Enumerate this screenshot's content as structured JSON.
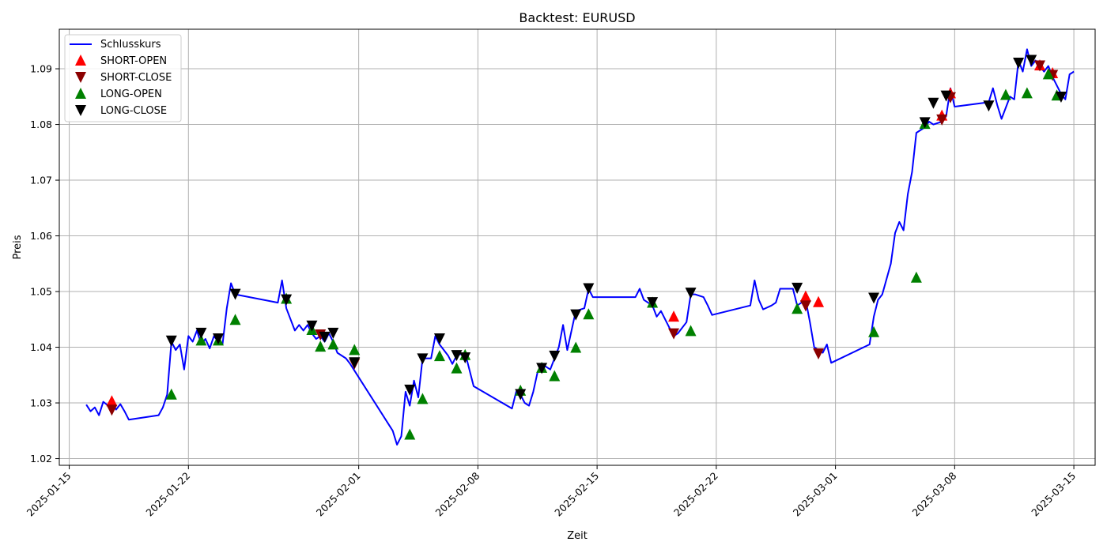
{
  "chart_data": {
    "type": "line",
    "title": "Backtest: EURUSD",
    "xlabel": "Zeit",
    "ylabel": "Preis",
    "grid": true,
    "legend_position": "top-left",
    "xlim": [
      "2025-01-14T10:00",
      "2025-03-16T06:00"
    ],
    "ylim": [
      1.0188,
      1.0971
    ],
    "x_ticks": [
      "2025-01-15",
      "2025-01-22",
      "2025-02-01",
      "2025-02-08",
      "2025-02-15",
      "2025-02-22",
      "2025-03-01",
      "2025-03-08",
      "2025-03-15"
    ],
    "y_ticks": [
      "1.02",
      "1.03",
      "1.04",
      "1.05",
      "1.06",
      "1.07",
      "1.08",
      "1.09"
    ],
    "colors": {
      "line": "#0000ff",
      "short_open": "#ff0000",
      "short_close": "#8b0000",
      "long_open": "#008000",
      "long_close": "#000000"
    },
    "series": [
      {
        "name": "Schlusskurs",
        "kind": "line",
        "points": [
          [
            "2025-01-16T00:00",
            1.0297
          ],
          [
            "2025-01-16T06:00",
            1.0285
          ],
          [
            "2025-01-16T12:00",
            1.0292
          ],
          [
            "2025-01-16T18:00",
            1.0278
          ],
          [
            "2025-01-17T00:00",
            1.0302
          ],
          [
            "2025-01-17T06:00",
            1.0296
          ],
          [
            "2025-01-17T12:00",
            1.0303
          ],
          [
            "2025-01-17T18:00",
            1.0288
          ],
          [
            "2025-01-18T00:00",
            1.0298
          ],
          [
            "2025-01-18T06:00",
            1.0285
          ],
          [
            "2025-01-18T12:00",
            1.027
          ],
          [
            "2025-01-20T06:00",
            1.0278
          ],
          [
            "2025-01-20T12:00",
            1.0292
          ],
          [
            "2025-01-20T18:00",
            1.0315
          ],
          [
            "2025-01-21T00:00",
            1.041
          ],
          [
            "2025-01-21T06:00",
            1.0395
          ],
          [
            "2025-01-21T12:00",
            1.0405
          ],
          [
            "2025-01-21T18:00",
            1.036
          ],
          [
            "2025-01-22T00:00",
            1.042
          ],
          [
            "2025-01-22T06:00",
            1.041
          ],
          [
            "2025-01-22T12:00",
            1.043
          ],
          [
            "2025-01-22T18:00",
            1.0405
          ],
          [
            "2025-01-23T00:00",
            1.0415
          ],
          [
            "2025-01-23T06:00",
            1.0398
          ],
          [
            "2025-01-23T12:00",
            1.042
          ],
          [
            "2025-01-23T18:00",
            1.041
          ],
          [
            "2025-01-24T00:00",
            1.0405
          ],
          [
            "2025-01-24T06:00",
            1.047
          ],
          [
            "2025-01-24T12:00",
            1.0515
          ],
          [
            "2025-01-24T18:00",
            1.0495
          ],
          [
            "2025-01-27T06:00",
            1.048
          ],
          [
            "2025-01-27T12:00",
            1.052
          ],
          [
            "2025-01-27T18:00",
            1.047
          ],
          [
            "2025-01-28T00:00",
            1.045
          ],
          [
            "2025-01-28T06:00",
            1.043
          ],
          [
            "2025-01-28T12:00",
            1.044
          ],
          [
            "2025-01-28T18:00",
            1.043
          ],
          [
            "2025-01-29T00:00",
            1.044
          ],
          [
            "2025-01-29T06:00",
            1.0425
          ],
          [
            "2025-01-29T12:00",
            1.0415
          ],
          [
            "2025-01-29T18:00",
            1.042
          ],
          [
            "2025-01-30T00:00",
            1.041
          ],
          [
            "2025-01-30T06:00",
            1.0425
          ],
          [
            "2025-01-30T12:00",
            1.041
          ],
          [
            "2025-01-30T18:00",
            1.039
          ],
          [
            "2025-01-31T06:00",
            1.038
          ],
          [
            "2025-01-31T12:00",
            1.037
          ],
          [
            "2025-02-03T00:00",
            1.025
          ],
          [
            "2025-02-03T06:00",
            1.0225
          ],
          [
            "2025-02-03T12:00",
            1.024
          ],
          [
            "2025-02-03T18:00",
            1.032
          ],
          [
            "2025-02-04T00:00",
            1.0295
          ],
          [
            "2025-02-04T06:00",
            1.034
          ],
          [
            "2025-02-04T12:00",
            1.031
          ],
          [
            "2025-02-04T18:00",
            1.038
          ],
          [
            "2025-02-05T06:00",
            1.038
          ],
          [
            "2025-02-05T12:00",
            1.042
          ],
          [
            "2025-02-05T18:00",
            1.0405
          ],
          [
            "2025-02-06T06:00",
            1.0385
          ],
          [
            "2025-02-06T12:00",
            1.037
          ],
          [
            "2025-02-06T18:00",
            1.0385
          ],
          [
            "2025-02-07T06:00",
            1.039
          ],
          [
            "2025-02-07T12:00",
            1.036
          ],
          [
            "2025-02-07T18:00",
            1.033
          ],
          [
            "2025-02-10T00:00",
            1.029
          ],
          [
            "2025-02-10T06:00",
            1.032
          ],
          [
            "2025-02-10T12:00",
            1.0315
          ],
          [
            "2025-02-10T18:00",
            1.03
          ],
          [
            "2025-02-11T00:00",
            1.0295
          ],
          [
            "2025-02-11T06:00",
            1.032
          ],
          [
            "2025-02-11T12:00",
            1.0355
          ],
          [
            "2025-02-11T18:00",
            1.037
          ],
          [
            "2025-02-12T06:00",
            1.036
          ],
          [
            "2025-02-12T12:00",
            1.038
          ],
          [
            "2025-02-12T18:00",
            1.04
          ],
          [
            "2025-02-13T00:00",
            1.044
          ],
          [
            "2025-02-13T06:00",
            1.0395
          ],
          [
            "2025-02-13T12:00",
            1.043
          ],
          [
            "2025-02-13T18:00",
            1.0465
          ],
          [
            "2025-02-14T06:00",
            1.047
          ],
          [
            "2025-02-14T12:00",
            1.0505
          ],
          [
            "2025-02-14T18:00",
            1.049
          ],
          [
            "2025-02-17T06:00",
            1.049
          ],
          [
            "2025-02-17T12:00",
            1.0505
          ],
          [
            "2025-02-17T18:00",
            1.0485
          ],
          [
            "2025-02-18T06:00",
            1.0475
          ],
          [
            "2025-02-18T12:00",
            1.0455
          ],
          [
            "2025-02-18T18:00",
            1.0465
          ],
          [
            "2025-02-19T06:00",
            1.0435
          ],
          [
            "2025-02-19T12:00",
            1.042
          ],
          [
            "2025-02-19T18:00",
            1.0425
          ],
          [
            "2025-02-20T06:00",
            1.0445
          ],
          [
            "2025-02-20T12:00",
            1.0495
          ],
          [
            "2025-02-20T18:00",
            1.0495
          ],
          [
            "2025-02-21T06:00",
            1.049
          ],
          [
            "2025-02-21T12:00",
            1.0475
          ],
          [
            "2025-02-21T18:00",
            1.0458
          ],
          [
            "2025-02-24T00:00",
            1.0475
          ],
          [
            "2025-02-24T06:00",
            1.052
          ],
          [
            "2025-02-24T12:00",
            1.0485
          ],
          [
            "2025-02-24T18:00",
            1.0468
          ],
          [
            "2025-02-25T06:00",
            1.0475
          ],
          [
            "2025-02-25T12:00",
            1.048
          ],
          [
            "2025-02-25T18:00",
            1.0505
          ],
          [
            "2025-02-26T06:00",
            1.0505
          ],
          [
            "2025-02-26T12:00",
            1.0505
          ],
          [
            "2025-02-26T18:00",
            1.0475
          ],
          [
            "2025-02-27T06:00",
            1.0485
          ],
          [
            "2025-02-27T12:00",
            1.0445
          ],
          [
            "2025-02-27T18:00",
            1.04
          ],
          [
            "2025-02-28T06:00",
            1.039
          ],
          [
            "2025-02-28T12:00",
            1.0405
          ],
          [
            "2025-02-28T18:00",
            1.0372
          ],
          [
            "2025-03-03T00:00",
            1.0405
          ],
          [
            "2025-03-03T06:00",
            1.0455
          ],
          [
            "2025-03-03T12:00",
            1.0485
          ],
          [
            "2025-03-03T18:00",
            1.0495
          ],
          [
            "2025-03-04T06:00",
            1.055
          ],
          [
            "2025-03-04T12:00",
            1.0605
          ],
          [
            "2025-03-04T18:00",
            1.0625
          ],
          [
            "2025-03-05T00:00",
            1.061
          ],
          [
            "2025-03-05T06:00",
            1.0675
          ],
          [
            "2025-03-05T12:00",
            1.0715
          ],
          [
            "2025-03-05T18:00",
            1.0785
          ],
          [
            "2025-03-06T06:00",
            1.0795
          ],
          [
            "2025-03-06T12:00",
            1.0805
          ],
          [
            "2025-03-06T18:00",
            1.08
          ],
          [
            "2025-03-07T06:00",
            1.0805
          ],
          [
            "2025-03-07T12:00",
            1.0815
          ],
          [
            "2025-03-07T18:00",
            1.0865
          ],
          [
            "2025-03-08T00:00",
            1.0832
          ],
          [
            "2025-03-10T00:00",
            1.084
          ],
          [
            "2025-03-10T06:00",
            1.0865
          ],
          [
            "2025-03-10T12:00",
            1.0835
          ],
          [
            "2025-03-10T18:00",
            1.081
          ],
          [
            "2025-03-11T06:00",
            1.085
          ],
          [
            "2025-03-11T12:00",
            1.0845
          ],
          [
            "2025-03-11T18:00",
            1.0915
          ],
          [
            "2025-03-12T00:00",
            1.0895
          ],
          [
            "2025-03-12T06:00",
            1.0935
          ],
          [
            "2025-03-12T12:00",
            1.0905
          ],
          [
            "2025-03-12T18:00",
            1.0915
          ],
          [
            "2025-03-13T06:00",
            1.0895
          ],
          [
            "2025-03-13T12:00",
            1.0905
          ],
          [
            "2025-03-13T18:00",
            1.0885
          ],
          [
            "2025-03-14T06:00",
            1.0855
          ],
          [
            "2025-03-14T12:00",
            1.0845
          ],
          [
            "2025-03-14T18:00",
            1.089
          ],
          [
            "2025-03-15T00:00",
            1.0895
          ]
        ]
      },
      {
        "name": "SHORT-OPEN",
        "kind": "marker",
        "marker": "triangle-up",
        "points": [
          [
            "2025-01-17T12:00",
            1.0304
          ],
          [
            "2025-02-19T12:00",
            1.0456
          ],
          [
            "2025-02-27T06:00",
            1.0492
          ],
          [
            "2025-02-28T00:00",
            1.0482
          ],
          [
            "2025-03-07T06:00",
            1.0817
          ],
          [
            "2025-03-07T18:00",
            1.0857
          ],
          [
            "2025-03-13T00:00",
            1.0907
          ],
          [
            "2025-03-13T18:00",
            1.0893
          ]
        ]
      },
      {
        "name": "SHORT-CLOSE",
        "kind": "marker",
        "marker": "triangle-down",
        "points": [
          [
            "2025-01-17T12:00",
            1.0287
          ],
          [
            "2025-01-29T18:00",
            1.0422
          ],
          [
            "2025-01-31T18:00",
            1.037
          ],
          [
            "2025-02-19T12:00",
            1.0424
          ],
          [
            "2025-02-27T06:00",
            1.0474
          ],
          [
            "2025-02-28T00:00",
            1.0388
          ],
          [
            "2025-03-07T06:00",
            1.0808
          ],
          [
            "2025-03-07T18:00",
            1.0848
          ],
          [
            "2025-03-13T00:00",
            1.0905
          ],
          [
            "2025-03-13T18:00",
            1.0888
          ]
        ]
      },
      {
        "name": "LONG-OPEN",
        "kind": "marker",
        "marker": "triangle-up",
        "points": [
          [
            "2025-01-21T00:00",
            1.0316
          ],
          [
            "2025-01-22T18:00",
            1.0413
          ],
          [
            "2025-01-23T18:00",
            1.0413
          ],
          [
            "2025-01-24T18:00",
            1.045
          ],
          [
            "2025-01-27T18:00",
            1.0488
          ],
          [
            "2025-01-29T06:00",
            1.0432
          ],
          [
            "2025-01-29T18:00",
            1.0402
          ],
          [
            "2025-01-30T12:00",
            1.0406
          ],
          [
            "2025-01-31T18:00",
            1.0396
          ],
          [
            "2025-02-04T00:00",
            1.0244
          ],
          [
            "2025-02-04T18:00",
            1.0308
          ],
          [
            "2025-02-05T18:00",
            1.0385
          ],
          [
            "2025-02-06T18:00",
            1.0363
          ],
          [
            "2025-02-07T06:00",
            1.0387
          ],
          [
            "2025-02-10T12:00",
            1.0323
          ],
          [
            "2025-02-11T18:00",
            1.0364
          ],
          [
            "2025-02-12T12:00",
            1.0349
          ],
          [
            "2025-02-13T18:00",
            1.04
          ],
          [
            "2025-02-14T12:00",
            1.046
          ],
          [
            "2025-02-18T06:00",
            1.0481
          ],
          [
            "2025-02-20T12:00",
            1.043
          ],
          [
            "2025-02-26T18:00",
            1.047
          ],
          [
            "2025-03-03T06:00",
            1.0428
          ],
          [
            "2025-03-05T18:00",
            1.0526
          ],
          [
            "2025-03-06T06:00",
            1.0802
          ],
          [
            "2025-03-11T00:00",
            1.0854
          ],
          [
            "2025-03-12T06:00",
            1.0857
          ],
          [
            "2025-03-13T12:00",
            1.0891
          ],
          [
            "2025-03-14T00:00",
            1.0853
          ]
        ]
      },
      {
        "name": "LONG-CLOSE",
        "kind": "marker",
        "marker": "triangle-down",
        "points": [
          [
            "2025-01-21T00:00",
            1.0411
          ],
          [
            "2025-01-22T18:00",
            1.0425
          ],
          [
            "2025-01-23T18:00",
            1.0415
          ],
          [
            "2025-01-24T18:00",
            1.0495
          ],
          [
            "2025-01-27T18:00",
            1.0485
          ],
          [
            "2025-01-29T06:00",
            1.0438
          ],
          [
            "2025-01-30T00:00",
            1.0418
          ],
          [
            "2025-01-30T12:00",
            1.0425
          ],
          [
            "2025-01-31T18:00",
            1.0372
          ],
          [
            "2025-02-04T00:00",
            1.0323
          ],
          [
            "2025-02-04T18:00",
            1.0379
          ],
          [
            "2025-02-05T18:00",
            1.0415
          ],
          [
            "2025-02-06T18:00",
            1.0385
          ],
          [
            "2025-02-07T06:00",
            1.0381
          ],
          [
            "2025-02-10T12:00",
            1.0315
          ],
          [
            "2025-02-11T18:00",
            1.0362
          ],
          [
            "2025-02-12T12:00",
            1.0384
          ],
          [
            "2025-02-13T18:00",
            1.0458
          ],
          [
            "2025-02-14T12:00",
            1.0505
          ],
          [
            "2025-02-18T06:00",
            1.048
          ],
          [
            "2025-02-20T12:00",
            1.0497
          ],
          [
            "2025-02-26T18:00",
            1.0506
          ],
          [
            "2025-03-03T06:00",
            1.0488
          ],
          [
            "2025-03-06T06:00",
            1.0803
          ],
          [
            "2025-03-06T18:00",
            1.0838
          ],
          [
            "2025-03-07T12:00",
            1.0851
          ],
          [
            "2025-03-10T00:00",
            1.0833
          ],
          [
            "2025-03-11T18:00",
            1.091
          ],
          [
            "2025-03-12T12:00",
            1.0915
          ],
          [
            "2025-03-14T06:00",
            1.0849
          ]
        ]
      }
    ]
  }
}
